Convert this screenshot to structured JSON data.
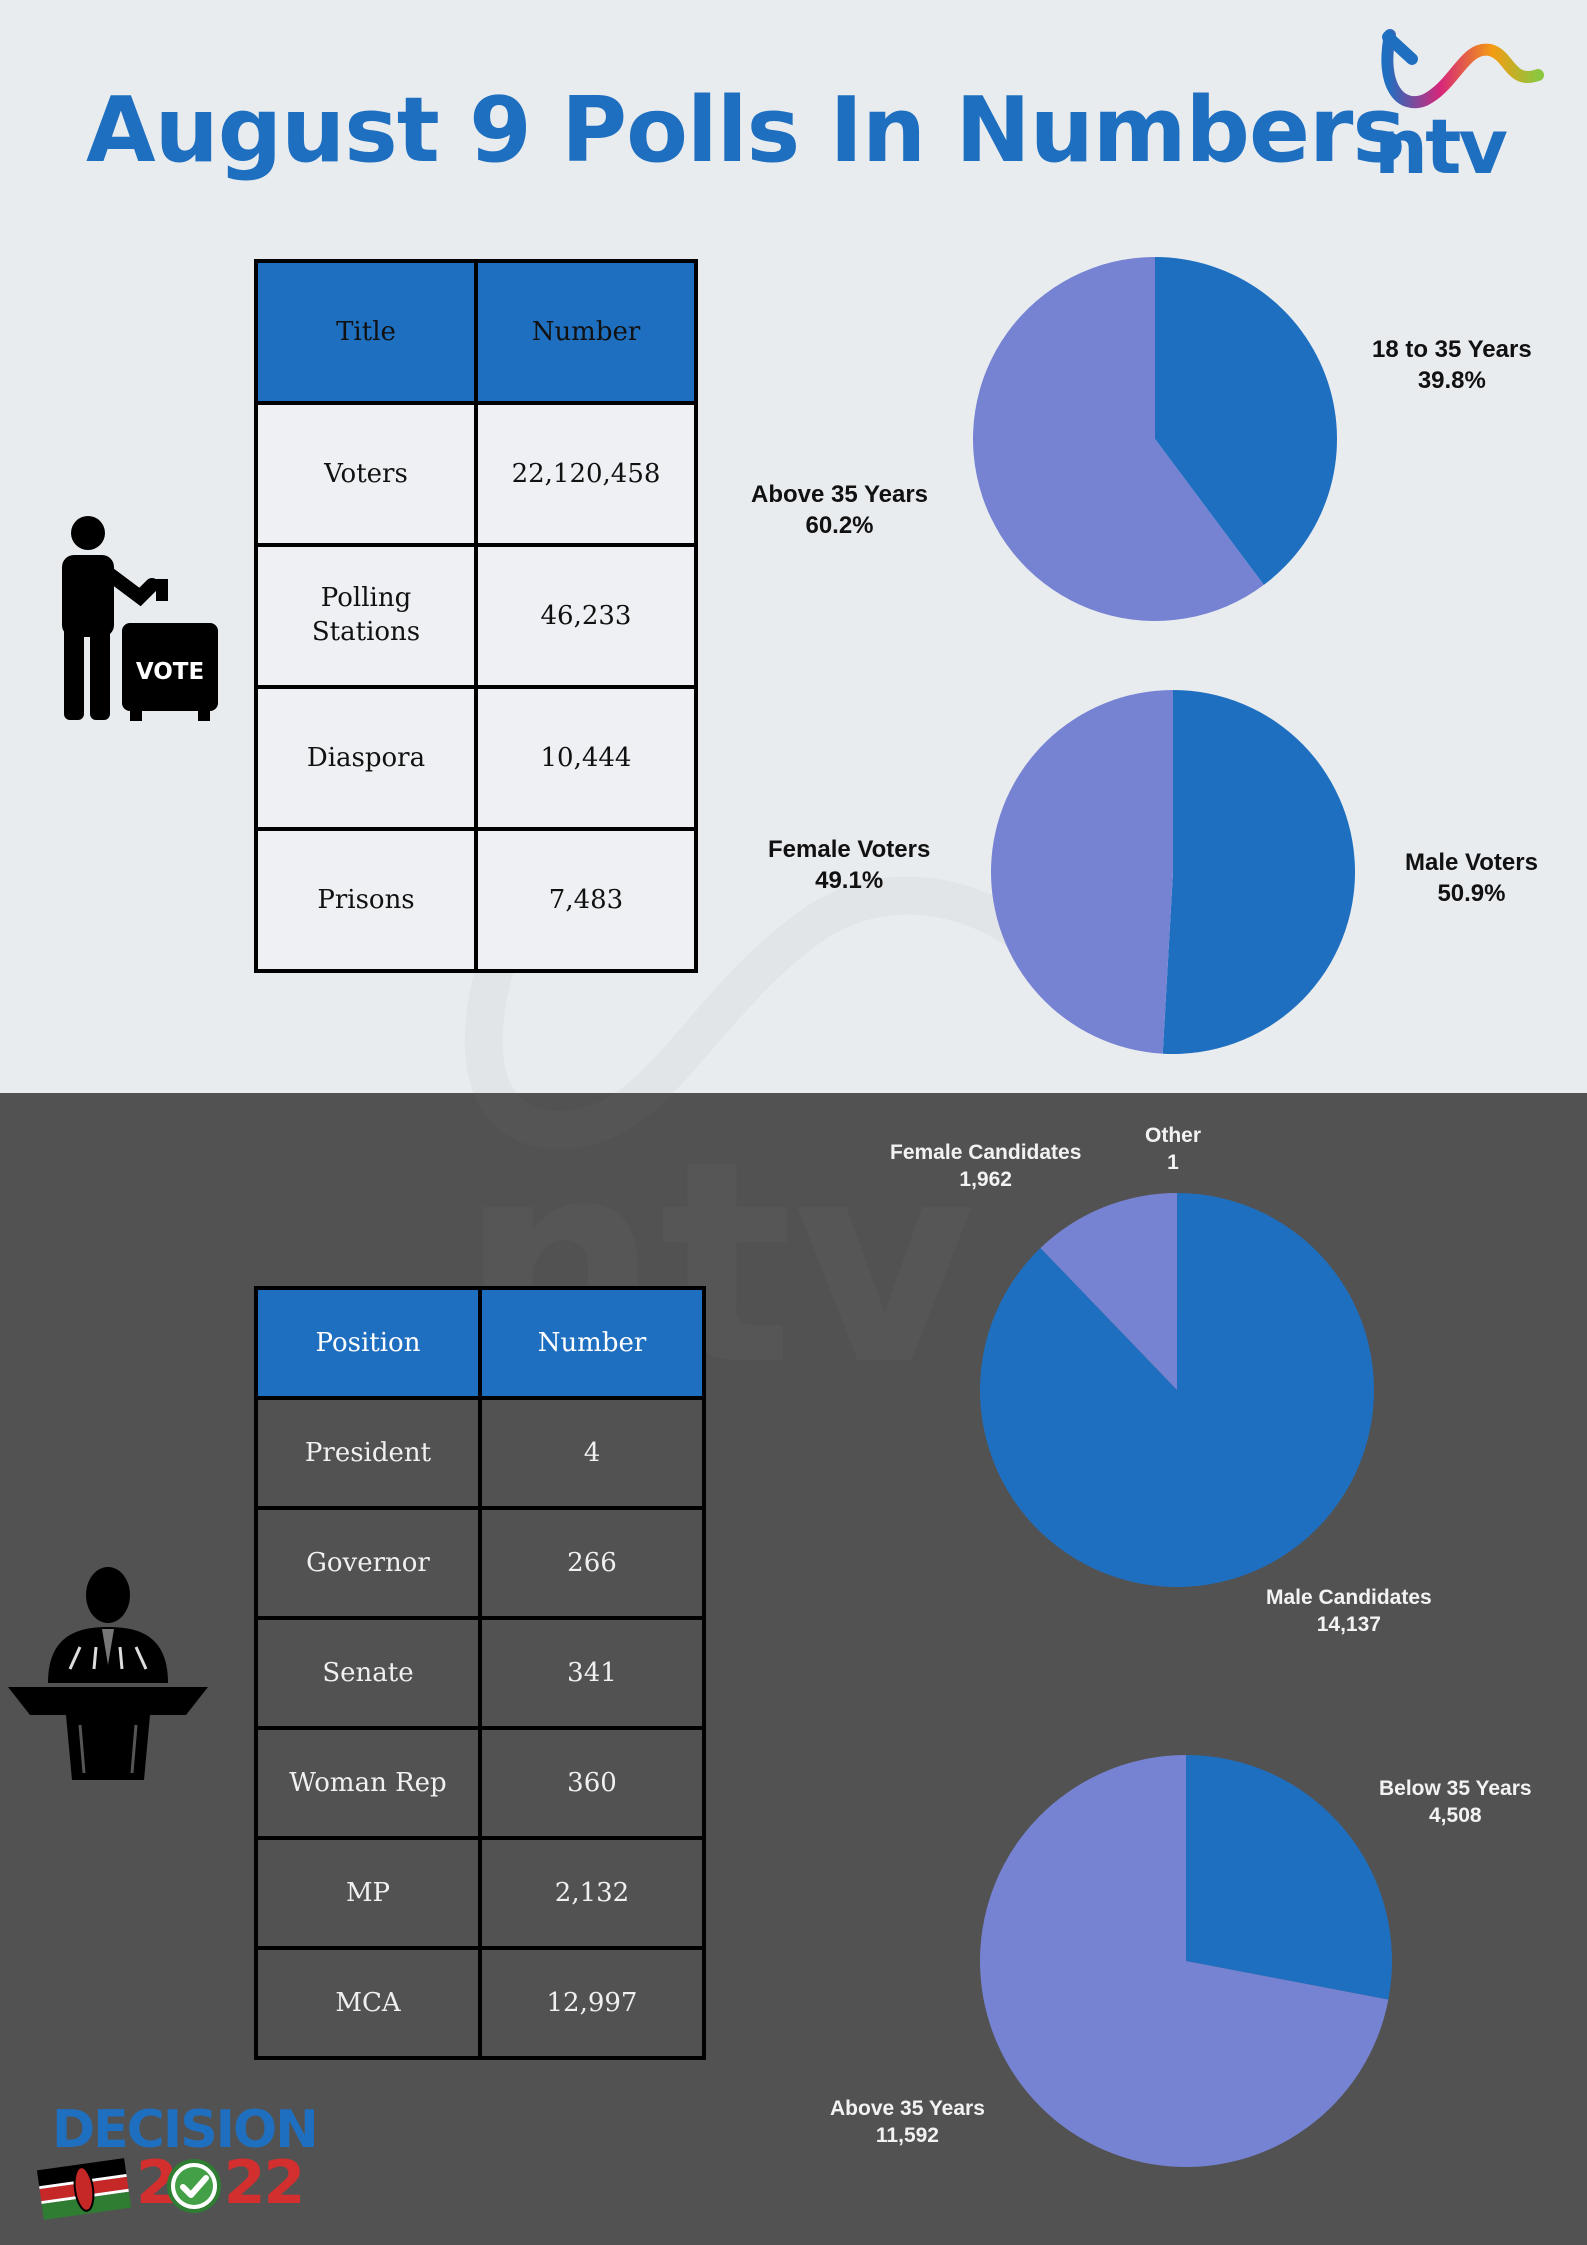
{
  "header": {
    "title": "August 9 Polls In Numbers",
    "logo_text": "ntv"
  },
  "voters_table": {
    "headers": [
      "Title",
      "Number"
    ],
    "rows": [
      [
        "Voters",
        "22,120,458"
      ],
      [
        "Polling Stations",
        "46,233"
      ],
      [
        "Diaspora",
        "10,444"
      ],
      [
        "Prisons",
        "7,483"
      ]
    ]
  },
  "candidates_table": {
    "headers": [
      "Position",
      "Number"
    ],
    "rows": [
      [
        "President",
        "4"
      ],
      [
        "Governor",
        "266"
      ],
      [
        "Senate",
        "341"
      ],
      [
        "Woman Rep",
        "360"
      ],
      [
        "MP",
        "2,132"
      ],
      [
        "MCA",
        "12,997"
      ]
    ]
  },
  "icons": {
    "voter": "voter-ballot-box-icon",
    "ballot_box_text": "VOTE",
    "candidate": "speaker-podium-icon"
  },
  "footer": {
    "brand_word": "DECISION",
    "brand_year": "2022",
    "flag_icon": "kenya-flag-icon",
    "check_icon": "check-circle-icon"
  },
  "colors": {
    "accent": "#1f6fc0",
    "slice_secondary": "#7683d3",
    "top_background": "#e9ecef",
    "bottom_background": "#525252"
  },
  "chart_data": [
    {
      "type": "pie",
      "title": "",
      "slices": [
        {
          "label": "18 to 35 Years",
          "value": 39.8,
          "display": "39.8%",
          "color": "#1f6fc0"
        },
        {
          "label": "Above 35 Years",
          "value": 60.2,
          "display": "60.2%",
          "color": "#7683d3"
        }
      ]
    },
    {
      "type": "pie",
      "title": "",
      "slices": [
        {
          "label": "Male Voters",
          "value": 50.9,
          "display": "50.9%",
          "color": "#1f6fc0"
        },
        {
          "label": "Female Voters",
          "value": 49.1,
          "display": "49.1%",
          "color": "#7683d3"
        }
      ]
    },
    {
      "type": "pie",
      "title": "",
      "slices": [
        {
          "label": "Other",
          "value": 1,
          "display": "1",
          "color": "#7683d3"
        },
        {
          "label": "Male Candidates",
          "value": 14137,
          "display": "14,137",
          "color": "#1f6fc0"
        },
        {
          "label": "Female Candidates",
          "value": 1962,
          "display": "1,962",
          "color": "#7683d3"
        }
      ]
    },
    {
      "type": "pie",
      "title": "",
      "slices": [
        {
          "label": "Below 35 Years",
          "value": 4508,
          "display": "4,508",
          "color": "#1f6fc0"
        },
        {
          "label": "Above 35 Years",
          "value": 11592,
          "display": "11,592",
          "color": "#7683d3"
        }
      ]
    }
  ]
}
